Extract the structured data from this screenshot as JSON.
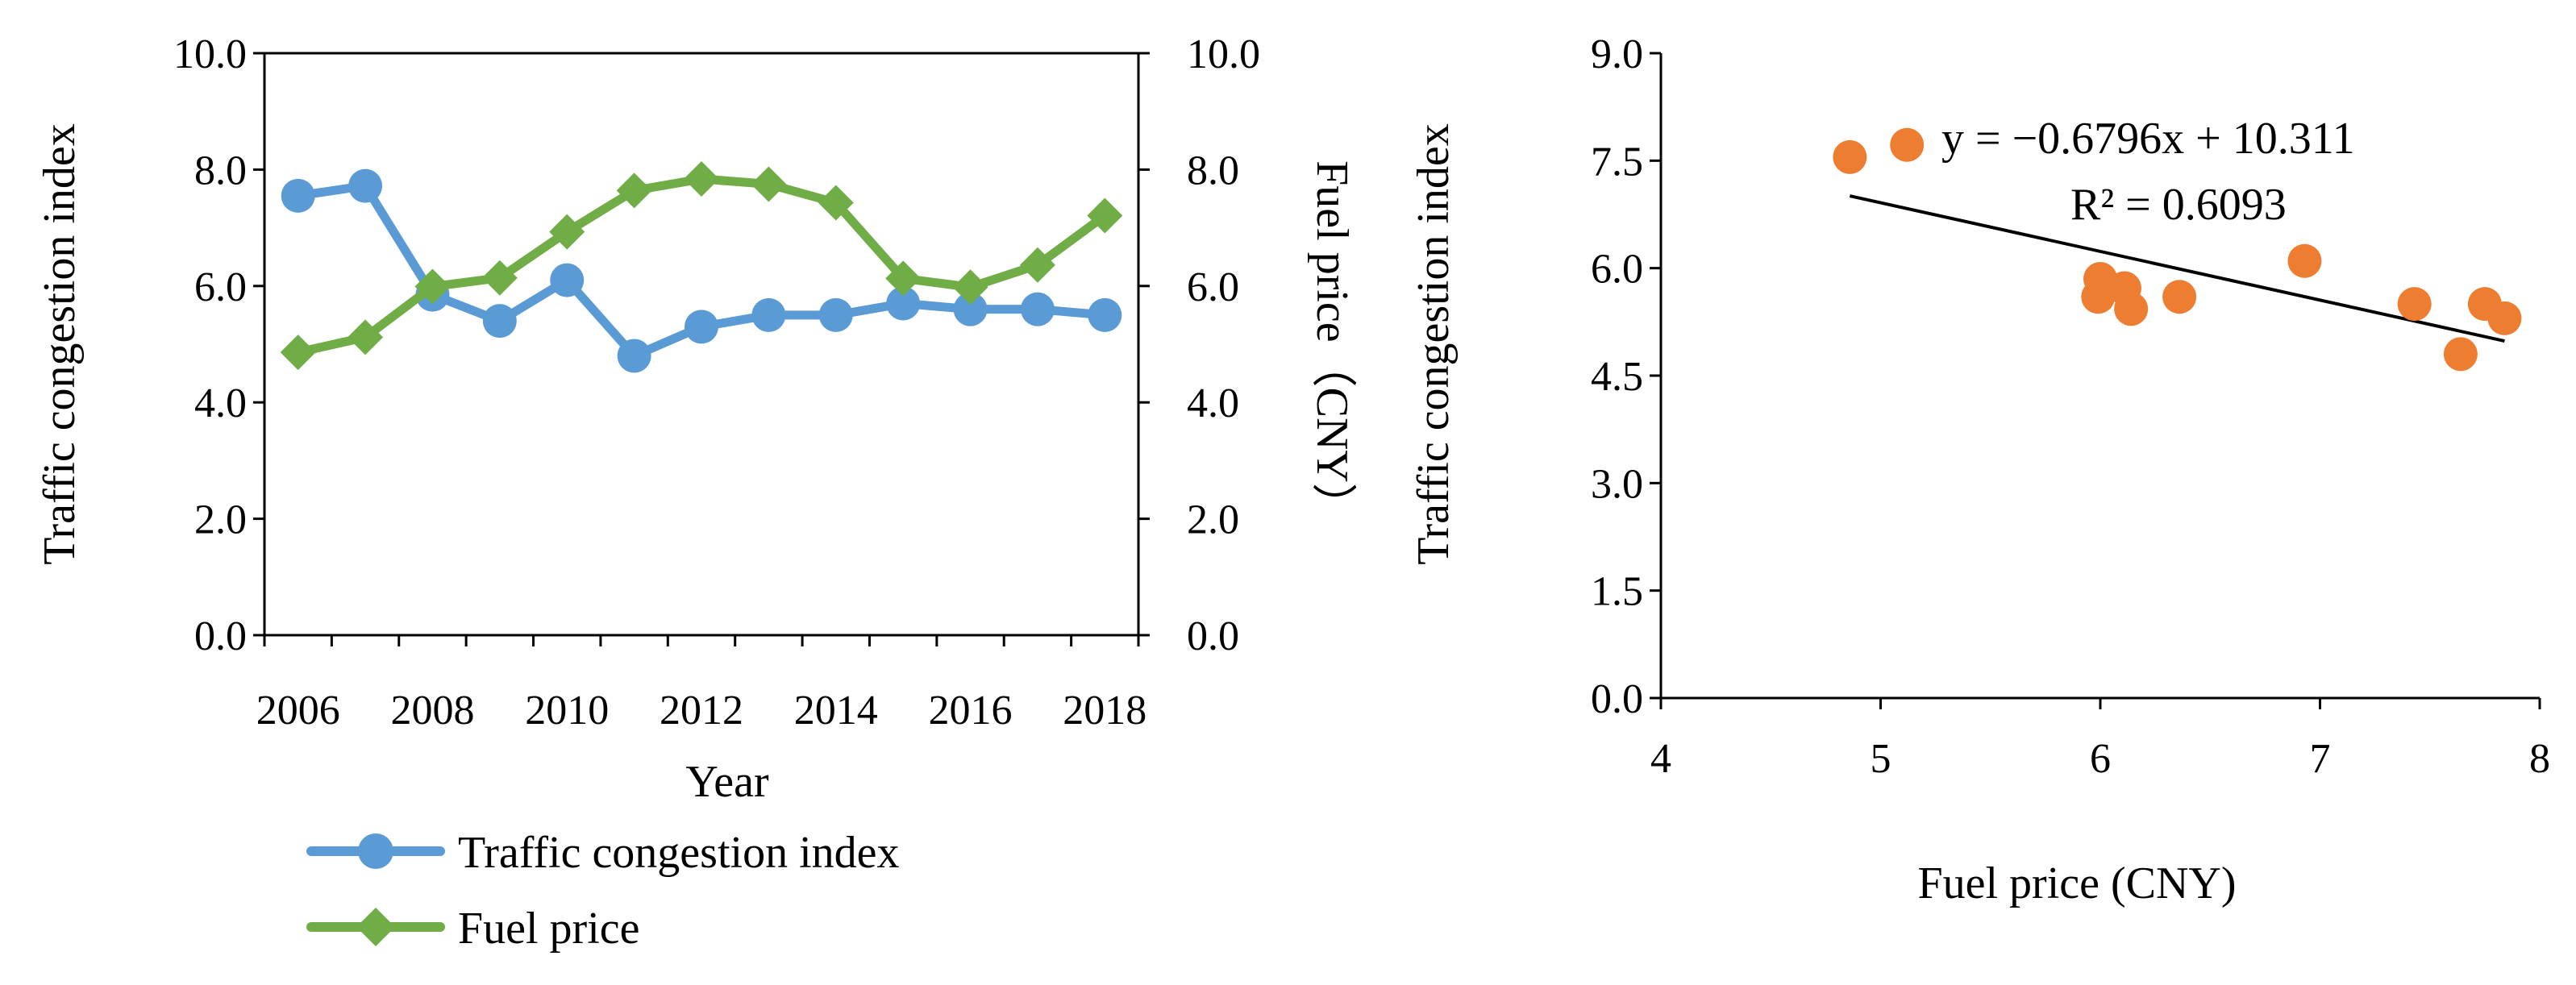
{
  "chart_data": [
    {
      "type": "line",
      "xlabel": "Year",
      "ylabel_left": "Traffic congestion index",
      "ylabel_right": "Fuel price（CNY）",
      "x": [
        2006,
        2007,
        2008,
        2009,
        2010,
        2011,
        2012,
        2013,
        2014,
        2015,
        2016,
        2017,
        2018
      ],
      "x_tick_labels": [
        "2006",
        "2008",
        "2010",
        "2012",
        "2014",
        "2016",
        "2018"
      ],
      "y_left_ticks": [
        "0.0",
        "2.0",
        "4.0",
        "6.0",
        "8.0",
        "10.0"
      ],
      "y_right_ticks": [
        "0.0",
        "2.0",
        "4.0",
        "6.0",
        "8.0",
        "10.0"
      ],
      "ylim_left": [
        0,
        10
      ],
      "ylim_right": [
        0,
        10
      ],
      "series": [
        {
          "name": "Traffic congestion index",
          "axis": "left",
          "marker": "circle",
          "color": "#5B9BD5",
          "values": [
            7.55,
            7.72,
            5.85,
            5.4,
            6.1,
            4.8,
            5.3,
            5.5,
            5.5,
            5.7,
            5.6,
            5.6,
            5.5
          ]
        },
        {
          "name": "Fuel price",
          "axis": "right",
          "marker": "diamond",
          "color": "#70AD47",
          "values": [
            4.86,
            5.12,
            5.99,
            6.14,
            6.93,
            7.64,
            7.84,
            7.75,
            7.43,
            6.13,
            5.98,
            6.36,
            7.21
          ]
        }
      ],
      "legend": [
        "Traffic congestion index",
        "Fuel price"
      ],
      "legend_position": "bottom"
    },
    {
      "type": "scatter",
      "xlabel": "Fuel price (CNY)",
      "ylabel": "Traffic congestion index",
      "xlim": [
        4,
        8
      ],
      "ylim": [
        0,
        9
      ],
      "x_ticks": [
        "4",
        "5",
        "6",
        "7",
        "8"
      ],
      "y_ticks": [
        "0.0",
        "1.5",
        "3.0",
        "4.5",
        "6.0",
        "7.5",
        "9.0"
      ],
      "marker_color": "#ED7D31",
      "points": [
        {
          "x": 4.86,
          "y": 7.55
        },
        {
          "x": 5.12,
          "y": 7.72
        },
        {
          "x": 5.99,
          "y": 5.6
        },
        {
          "x": 6.0,
          "y": 5.85
        },
        {
          "x": 6.11,
          "y": 5.72
        },
        {
          "x": 6.14,
          "y": 5.43
        },
        {
          "x": 6.36,
          "y": 5.6
        },
        {
          "x": 6.93,
          "y": 6.1
        },
        {
          "x": 7.43,
          "y": 5.5
        },
        {
          "x": 7.64,
          "y": 4.8
        },
        {
          "x": 7.75,
          "y": 5.5
        },
        {
          "x": 7.84,
          "y": 5.3
        }
      ],
      "trendline": {
        "slope": -0.6796,
        "intercept": 10.311,
        "x_range": [
          4.86,
          7.84
        ]
      },
      "equation_label": "y = −0.6796x + 10.311",
      "r2_label": "R² = 0.6093"
    }
  ]
}
